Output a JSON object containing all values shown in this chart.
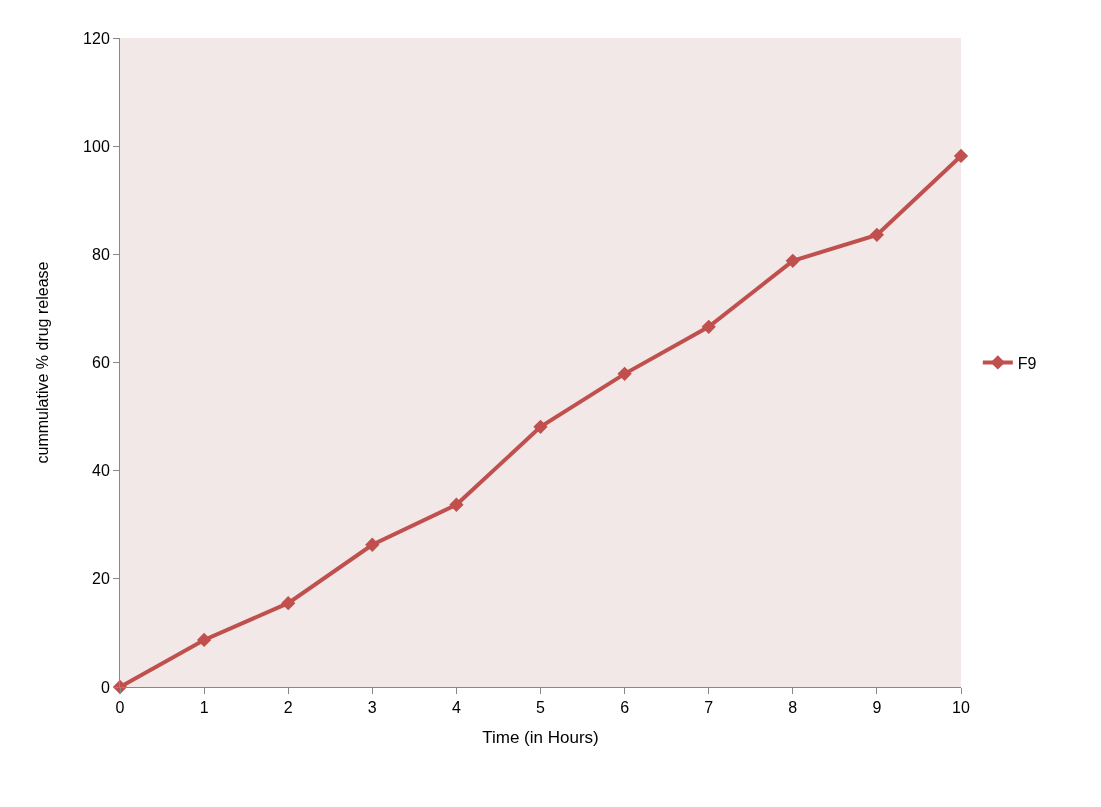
{
  "chart_data": {
    "type": "line",
    "xlabel": "Time (in Hours)",
    "ylabel": "cummulative % drug release",
    "x": [
      0,
      1,
      2,
      3,
      4,
      5,
      6,
      7,
      8,
      9,
      10
    ],
    "series": [
      {
        "name": "F9",
        "color": "#c0504d",
        "values": [
          0,
          8.7,
          15.5,
          26.3,
          33.7,
          48.1,
          57.9,
          66.6,
          78.8,
          83.6,
          98.2
        ]
      }
    ],
    "xlim": [
      0,
      10
    ],
    "xticks": [
      0,
      1,
      2,
      3,
      4,
      5,
      6,
      7,
      8,
      9,
      10
    ],
    "ylim": [
      0,
      120
    ],
    "yticks": [
      0,
      20,
      40,
      60,
      80,
      100,
      120
    ],
    "grid": false,
    "legend": "right",
    "marker": "diamond",
    "line_style": "solid"
  }
}
